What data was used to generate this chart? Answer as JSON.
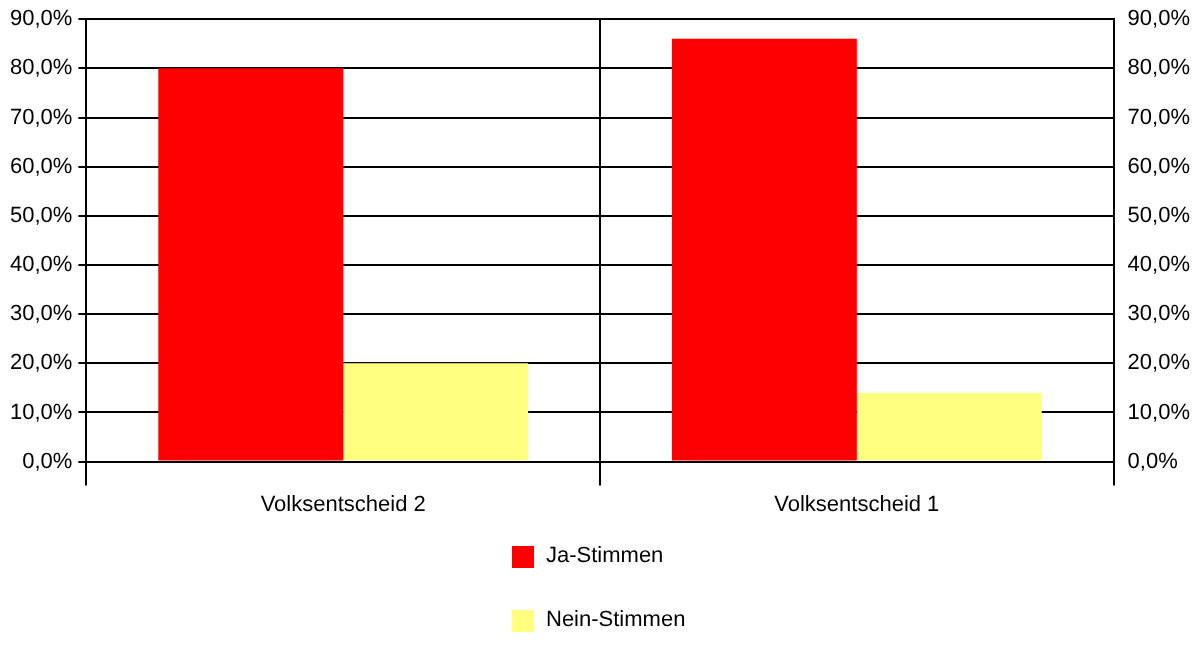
{
  "chart_data": {
    "type": "bar",
    "categories": [
      "Volksentscheid 2",
      "Volksentscheid 1"
    ],
    "series": [
      {
        "name": "Ja-Stimmen",
        "color": "#ff0000",
        "values": [
          80,
          86
        ]
      },
      {
        "name": "Nein-Stimmen",
        "color": "#ffff80",
        "values": [
          20,
          14
        ]
      }
    ],
    "ylim": [
      0,
      90
    ],
    "yticks": [
      {
        "value": 0,
        "label": "0,0%"
      },
      {
        "value": 10,
        "label": "10,0%"
      },
      {
        "value": 20,
        "label": "20,0%"
      },
      {
        "value": 30,
        "label": "30,0%"
      },
      {
        "value": 40,
        "label": "40,0%"
      },
      {
        "value": 50,
        "label": "50,0%"
      },
      {
        "value": 60,
        "label": "60,0%"
      },
      {
        "value": 70,
        "label": "70,0%"
      },
      {
        "value": 80,
        "label": "80,0%"
      },
      {
        "value": 90,
        "label": "90,0%"
      }
    ],
    "y2lim": [
      0,
      90
    ],
    "y2ticks": [
      {
        "value": 0,
        "label": "0,0%"
      },
      {
        "value": 10,
        "label": "10,0%"
      },
      {
        "value": 20,
        "label": "20,0%"
      },
      {
        "value": 30,
        "label": "30,0%"
      },
      {
        "value": 40,
        "label": "40,0%"
      },
      {
        "value": 50,
        "label": "50,0%"
      },
      {
        "value": 60,
        "label": "60,0%"
      },
      {
        "value": 70,
        "label": "70,0%"
      },
      {
        "value": 80,
        "label": "80,0%"
      },
      {
        "value": 90,
        "label": "90,0%"
      }
    ],
    "grid": true,
    "legend": "bottom"
  }
}
